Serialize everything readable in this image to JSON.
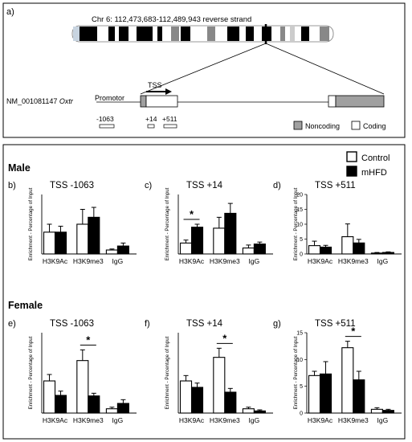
{
  "panel_a": {
    "label": "a)",
    "chromosome_text": "Chr 6: 112,473,683-112,489,943 reverse strand",
    "gene_label": "NM_001081147",
    "gene_name": "Oxtr",
    "promotor_label": "Promotor",
    "tss_label": "TSS",
    "amplicons": [
      "-1063",
      "+14",
      "+511"
    ],
    "legend": {
      "noncoding": "Noncoding",
      "coding": "Coding"
    },
    "colors": {
      "noncoding": "#a0a0a0",
      "coding": "#ffffff"
    }
  },
  "sections": {
    "male": "Male",
    "female": "Female"
  },
  "legend": {
    "control": "Control",
    "mhfd": "mHFD"
  },
  "colors": {
    "control": "#ffffff",
    "mhfd": "#000000",
    "stroke": "#000000"
  },
  "y_axis_label": "Enrichment - Percentage of Input",
  "chart_data": [
    {
      "id": "b",
      "label": "b)",
      "title": "TSS -1063",
      "type": "bar",
      "categories": [
        "H3K9Ac",
        "H3K9me3",
        "IgG"
      ],
      "ylim": [
        0,
        6
      ],
      "series": [
        {
          "name": "Control",
          "values": [
            2.2,
            3.0,
            0.4
          ],
          "errors": [
            0.8,
            1.5,
            0.1
          ]
        },
        {
          "name": "mHFD",
          "values": [
            2.2,
            3.7,
            0.8
          ],
          "errors": [
            0.6,
            1.0,
            0.3
          ]
        }
      ],
      "significant": []
    },
    {
      "id": "c",
      "label": "c)",
      "title": "TSS +14",
      "type": "bar",
      "categories": [
        "H3K9Ac",
        "H3K9me3",
        "IgG"
      ],
      "ylim": [
        0,
        6
      ],
      "series": [
        {
          "name": "Control",
          "values": [
            1.1,
            2.6,
            0.6
          ],
          "errors": [
            0.3,
            1.1,
            0.3
          ]
        },
        {
          "name": "mHFD",
          "values": [
            2.7,
            4.1,
            1.0
          ],
          "errors": [
            0.3,
            1.0,
            0.2
          ]
        }
      ],
      "significant": [
        0
      ]
    },
    {
      "id": "d",
      "label": "d)",
      "title": "TSS +511",
      "type": "bar",
      "categories": [
        "H3K9Ac",
        "H3K9me3",
        "IgG"
      ],
      "ylim": [
        0,
        20
      ],
      "yticks": [
        0,
        5,
        10,
        15,
        20
      ],
      "yticklabels": [
        "0",
        "5",
        "10",
        "15",
        "20"
      ],
      "series": [
        {
          "name": "Control",
          "values": [
            2.8,
            5.8,
            0.3
          ],
          "errors": [
            1.5,
            4.3,
            0.2
          ]
        },
        {
          "name": "mHFD",
          "values": [
            2.3,
            3.7,
            0.5
          ],
          "errors": [
            0.6,
            1.2,
            0.2
          ]
        }
      ],
      "significant": []
    },
    {
      "id": "e",
      "label": "e)",
      "title": "TSS -1063",
      "type": "bar",
      "categories": [
        "H3K9Ac",
        "H3K9me3",
        "IgG"
      ],
      "ylim": [
        0,
        15
      ],
      "series": [
        {
          "name": "Control",
          "values": [
            6.0,
            9.8,
            0.8
          ],
          "errors": [
            1.2,
            2.0,
            0.3
          ]
        },
        {
          "name": "mHFD",
          "values": [
            3.3,
            3.2,
            1.8
          ],
          "errors": [
            0.8,
            0.5,
            0.7
          ]
        }
      ],
      "significant": [
        1
      ]
    },
    {
      "id": "f",
      "label": "f)",
      "title": "TSS +14",
      "type": "bar",
      "categories": [
        "H3K9Ac",
        "H3K9me3",
        "IgG"
      ],
      "ylim": [
        0,
        15
      ],
      "series": [
        {
          "name": "Control",
          "values": [
            6.0,
            10.4,
            0.8
          ],
          "errors": [
            1.0,
            1.7,
            0.3
          ]
        },
        {
          "name": "mHFD",
          "values": [
            4.8,
            3.9,
            0.4
          ],
          "errors": [
            0.8,
            0.7,
            0.2
          ]
        }
      ],
      "significant": [
        1
      ]
    },
    {
      "id": "g",
      "label": "g)",
      "title": "TSS +511",
      "type": "bar",
      "categories": [
        "H3K9Ac",
        "H3K9me3",
        "IgG"
      ],
      "ylim": [
        0,
        15
      ],
      "yticks": [
        0,
        5,
        10,
        15
      ],
      "yticklabels": [
        "0",
        "5",
        "10",
        "15"
      ],
      "series": [
        {
          "name": "Control",
          "values": [
            7.0,
            12.2,
            0.7
          ],
          "errors": [
            0.8,
            1.2,
            0.3
          ]
        },
        {
          "name": "mHFD",
          "values": [
            7.3,
            6.2,
            0.5
          ],
          "errors": [
            2.3,
            1.6,
            0.2
          ]
        }
      ],
      "significant": [
        1
      ]
    }
  ]
}
